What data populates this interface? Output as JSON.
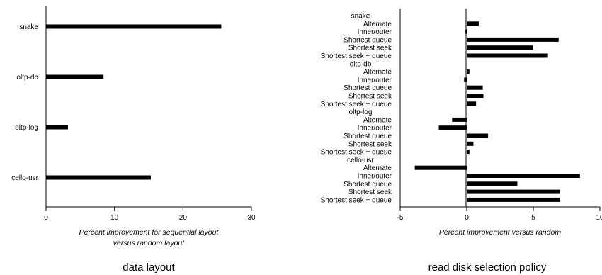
{
  "chart_data": [
    {
      "type": "bar",
      "orientation": "horizontal",
      "categories": [
        "snake",
        "oltp-db",
        "oltp-log",
        "cello-usr"
      ],
      "values": [
        25.6,
        8.4,
        3.2,
        15.3
      ],
      "xlabel_line1": "Percent improvement for sequential layout",
      "xlabel_line2": "versus random layout",
      "xlim": [
        0,
        30
      ],
      "xticks": [
        "0",
        "10",
        "20",
        "30"
      ],
      "caption": "data layout",
      "grid": false
    },
    {
      "type": "bar",
      "orientation": "horizontal",
      "groups": [
        {
          "name": "snake",
          "items": [
            {
              "label": "Alternate",
              "value": 0.9
            },
            {
              "label": "Inner/outer",
              "value": -0.1
            },
            {
              "label": "Shortest queue",
              "value": 6.9
            },
            {
              "label": "Shortest seek",
              "value": 5.0
            },
            {
              "label": "Shortest seek + queue",
              "value": 6.1
            }
          ]
        },
        {
          "name": "oltp-db",
          "items": [
            {
              "label": "Alternate",
              "value": 0.2
            },
            {
              "label": "Inner/outer",
              "value": -0.2
            },
            {
              "label": "Shortest queue",
              "value": 1.2
            },
            {
              "label": "Shortest seek",
              "value": 1.25
            },
            {
              "label": "Shortest seek + queue",
              "value": 0.7
            }
          ]
        },
        {
          "name": "oltp-log",
          "items": [
            {
              "label": "Alternate",
              "value": -1.1
            },
            {
              "label": "Inner/outer",
              "value": -2.1
            },
            {
              "label": "Shortest queue",
              "value": 1.6
            },
            {
              "label": "Shortest seek",
              "value": 0.5
            },
            {
              "label": "Shortest seek + queue",
              "value": 0.2
            }
          ]
        },
        {
          "name": "cello-usr",
          "items": [
            {
              "label": "Alternate",
              "value": -3.9
            },
            {
              "label": "Inner/outer",
              "value": 8.5
            },
            {
              "label": "Shortest queue",
              "value": 3.8
            },
            {
              "label": "Shortest seek",
              "value": 7.0
            },
            {
              "label": "Shortest seek + queue",
              "value": 7.0
            }
          ]
        }
      ],
      "xlabel": "Percent improvement versus random",
      "xlim": [
        -5,
        10
      ],
      "xticks": [
        "-5",
        "0",
        "5",
        "10"
      ],
      "caption": "read disk selection policy",
      "grid": false
    }
  ]
}
